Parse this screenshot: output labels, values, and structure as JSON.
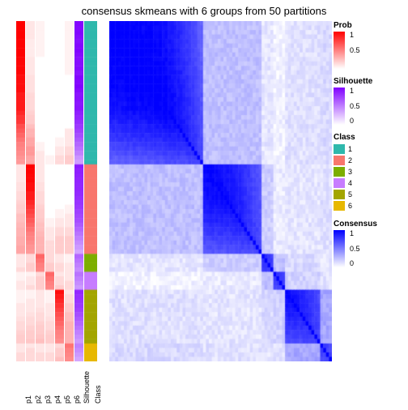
{
  "title": "consensus skmeans with 6 groups from 50 partitions",
  "background": "#ffffff",
  "annotation_columns": [
    {
      "name": "p1",
      "width": 11,
      "type": "prob"
    },
    {
      "name": "p2",
      "width": 11,
      "type": "prob"
    },
    {
      "name": "p3",
      "width": 11,
      "type": "prob"
    },
    {
      "name": "p4",
      "width": 11,
      "type": "prob"
    },
    {
      "name": "p5",
      "width": 11,
      "type": "prob"
    },
    {
      "name": "p6",
      "width": 11,
      "type": "prob"
    },
    {
      "name": "Silhouette",
      "width": 11,
      "type": "silhouette"
    },
    {
      "name": "Class",
      "width": 16,
      "type": "class"
    }
  ],
  "groups": [
    {
      "class": 1,
      "size": 32,
      "sil": [
        0.98,
        0.97,
        0.99,
        0.96,
        0.95,
        0.98,
        0.99,
        0.96,
        0.94,
        0.95,
        0.96,
        0.93,
        0.98,
        0.97,
        0.99,
        0.96,
        0.92,
        0.93,
        0.91,
        0.92,
        0.88,
        0.85,
        0.82,
        0.78,
        0.75,
        0.7,
        0.65,
        0.6,
        0.55,
        0.5,
        0.42,
        0.38
      ],
      "prob": [
        [
          1.0,
          0.1,
          0.05,
          0.0,
          0.0,
          0.05
        ],
        [
          1.0,
          0.1,
          0.05,
          0.0,
          0.0,
          0.05
        ],
        [
          1.0,
          0.1,
          0.05,
          0.0,
          0.0,
          0.05
        ],
        [
          1.0,
          0.1,
          0.05,
          0.0,
          0.0,
          0.05
        ],
        [
          1.0,
          0.08,
          0.05,
          0.0,
          0.0,
          0.05
        ],
        [
          1.0,
          0.08,
          0.05,
          0.0,
          0.0,
          0.05
        ],
        [
          1.0,
          0.08,
          0.05,
          0.0,
          0.0,
          0.05
        ],
        [
          1.0,
          0.08,
          0.05,
          0.0,
          0.0,
          0.05
        ],
        [
          0.98,
          0.1,
          0.0,
          0.0,
          0.0,
          0.05
        ],
        [
          0.98,
          0.1,
          0.0,
          0.0,
          0.0,
          0.05
        ],
        [
          0.98,
          0.1,
          0.0,
          0.0,
          0.0,
          0.05
        ],
        [
          0.98,
          0.1,
          0.0,
          0.0,
          0.0,
          0.05
        ],
        [
          0.95,
          0.12,
          0.0,
          0.0,
          0.0,
          0.0
        ],
        [
          0.95,
          0.12,
          0.0,
          0.0,
          0.0,
          0.0
        ],
        [
          0.95,
          0.12,
          0.0,
          0.0,
          0.0,
          0.0
        ],
        [
          0.95,
          0.12,
          0.0,
          0.0,
          0.0,
          0.0
        ],
        [
          0.9,
          0.15,
          0.0,
          0.0,
          0.0,
          0.0
        ],
        [
          0.9,
          0.15,
          0.0,
          0.0,
          0.0,
          0.0
        ],
        [
          0.9,
          0.15,
          0.0,
          0.0,
          0.0,
          0.0
        ],
        [
          0.9,
          0.15,
          0.0,
          0.0,
          0.0,
          0.0
        ],
        [
          0.85,
          0.18,
          0.0,
          0.0,
          0.0,
          0.0
        ],
        [
          0.8,
          0.2,
          0.0,
          0.0,
          0.0,
          0.0
        ],
        [
          0.78,
          0.2,
          0.0,
          0.0,
          0.0,
          0.0
        ],
        [
          0.7,
          0.25,
          0.0,
          0.0,
          0.0,
          0.0
        ],
        [
          0.65,
          0.3,
          0.0,
          0.0,
          0.0,
          0.1
        ],
        [
          0.6,
          0.3,
          0.0,
          0.0,
          0.0,
          0.1
        ],
        [
          0.55,
          0.35,
          0.0,
          0.0,
          0.05,
          0.1
        ],
        [
          0.5,
          0.35,
          0.05,
          0.0,
          0.05,
          0.1
        ],
        [
          0.48,
          0.4,
          0.05,
          0.0,
          0.1,
          0.15
        ],
        [
          0.45,
          0.4,
          0.1,
          0.0,
          0.1,
          0.15
        ],
        [
          0.42,
          0.35,
          0.1,
          0.05,
          0.15,
          0.2
        ],
        [
          0.4,
          0.35,
          0.1,
          0.05,
          0.15,
          0.2
        ]
      ]
    },
    {
      "class": 2,
      "size": 20,
      "sil": [
        0.9,
        0.88,
        0.87,
        0.86,
        0.85,
        0.85,
        0.84,
        0.82,
        0.8,
        0.78,
        0.75,
        0.72,
        0.7,
        0.65,
        0.6,
        0.55,
        0.5,
        0.45,
        0.4,
        0.35
      ],
      "prob": [
        [
          0.1,
          1.0,
          0.1,
          0.0,
          0.0,
          0.0
        ],
        [
          0.1,
          1.0,
          0.1,
          0.0,
          0.0,
          0.0
        ],
        [
          0.1,
          0.98,
          0.1,
          0.0,
          0.0,
          0.0
        ],
        [
          0.1,
          0.98,
          0.1,
          0.0,
          0.0,
          0.0
        ],
        [
          0.12,
          0.95,
          0.12,
          0.0,
          0.0,
          0.0
        ],
        [
          0.12,
          0.95,
          0.12,
          0.0,
          0.0,
          0.0
        ],
        [
          0.15,
          0.9,
          0.15,
          0.0,
          0.0,
          0.0
        ],
        [
          0.15,
          0.9,
          0.15,
          0.0,
          0.0,
          0.0
        ],
        [
          0.18,
          0.85,
          0.15,
          0.0,
          0.0,
          0.0
        ],
        [
          0.2,
          0.8,
          0.18,
          0.0,
          0.0,
          0.05
        ],
        [
          0.2,
          0.75,
          0.2,
          0.0,
          0.05,
          0.05
        ],
        [
          0.25,
          0.7,
          0.2,
          0.0,
          0.05,
          0.1
        ],
        [
          0.25,
          0.65,
          0.22,
          0.05,
          0.1,
          0.1
        ],
        [
          0.28,
          0.6,
          0.25,
          0.05,
          0.1,
          0.1
        ],
        [
          0.3,
          0.55,
          0.25,
          0.1,
          0.15,
          0.15
        ],
        [
          0.3,
          0.5,
          0.28,
          0.1,
          0.15,
          0.15
        ],
        [
          0.32,
          0.48,
          0.3,
          0.1,
          0.2,
          0.2
        ],
        [
          0.32,
          0.45,
          0.3,
          0.15,
          0.2,
          0.2
        ],
        [
          0.35,
          0.42,
          0.3,
          0.15,
          0.2,
          0.2
        ],
        [
          0.35,
          0.4,
          0.3,
          0.15,
          0.2,
          0.2
        ]
      ]
    },
    {
      "class": 3,
      "size": 4,
      "sil": [
        0.6,
        0.55,
        0.5,
        0.45
      ],
      "prob": [
        [
          0.1,
          0.15,
          0.6,
          0.15,
          0.1,
          0.05
        ],
        [
          0.1,
          0.15,
          0.55,
          0.15,
          0.1,
          0.05
        ],
        [
          0.1,
          0.2,
          0.5,
          0.2,
          0.15,
          0.1
        ],
        [
          0.15,
          0.2,
          0.48,
          0.2,
          0.15,
          0.1
        ]
      ]
    },
    {
      "class": 4,
      "size": 4,
      "sil": [
        0.55,
        0.5,
        0.45,
        0.4
      ],
      "prob": [
        [
          0.05,
          0.05,
          0.15,
          0.6,
          0.1,
          0.1
        ],
        [
          0.05,
          0.1,
          0.2,
          0.55,
          0.15,
          0.1
        ],
        [
          0.1,
          0.1,
          0.2,
          0.5,
          0.15,
          0.15
        ],
        [
          0.1,
          0.15,
          0.2,
          0.48,
          0.2,
          0.15
        ]
      ]
    },
    {
      "class": 5,
      "size": 12,
      "sil": [
        0.85,
        0.82,
        0.8,
        0.78,
        0.75,
        0.7,
        0.65,
        0.6,
        0.55,
        0.5,
        0.45,
        0.4
      ],
      "prob": [
        [
          0.05,
          0.05,
          0.1,
          0.05,
          0.95,
          0.1
        ],
        [
          0.05,
          0.05,
          0.1,
          0.05,
          0.9,
          0.15
        ],
        [
          0.05,
          0.1,
          0.1,
          0.05,
          0.85,
          0.15
        ],
        [
          0.1,
          0.1,
          0.1,
          0.1,
          0.8,
          0.2
        ],
        [
          0.1,
          0.1,
          0.12,
          0.1,
          0.75,
          0.2
        ],
        [
          0.1,
          0.12,
          0.15,
          0.1,
          0.7,
          0.25
        ],
        [
          0.12,
          0.15,
          0.15,
          0.12,
          0.65,
          0.25
        ],
        [
          0.15,
          0.15,
          0.18,
          0.15,
          0.6,
          0.3
        ],
        [
          0.15,
          0.18,
          0.2,
          0.15,
          0.55,
          0.3
        ],
        [
          0.18,
          0.2,
          0.2,
          0.18,
          0.5,
          0.3
        ],
        [
          0.2,
          0.2,
          0.22,
          0.2,
          0.48,
          0.3
        ],
        [
          0.2,
          0.22,
          0.25,
          0.2,
          0.45,
          0.3
        ]
      ]
    },
    {
      "class": 6,
      "size": 4,
      "sil": [
        0.5,
        0.45,
        0.4,
        0.35
      ],
      "prob": [
        [
          0.1,
          0.1,
          0.1,
          0.1,
          0.15,
          0.55
        ],
        [
          0.1,
          0.15,
          0.1,
          0.1,
          0.2,
          0.5
        ],
        [
          0.15,
          0.15,
          0.15,
          0.15,
          0.2,
          0.48
        ],
        [
          0.15,
          0.15,
          0.15,
          0.15,
          0.25,
          0.45
        ]
      ]
    }
  ],
  "class_colors": {
    "1": "#2fb8ac",
    "2": "#f8766d",
    "3": "#7cae00",
    "4": "#c77cff",
    "5": "#a3a500",
    "6": "#e7b800"
  },
  "prob_gradient": {
    "low": "#ffffff",
    "high": "#ff0000"
  },
  "silhouette_gradient": {
    "low": "#ffffff",
    "high": "#8000ff"
  },
  "consensus_gradient": {
    "low": "#ffffff",
    "high": "#0000ff"
  },
  "legends": [
    {
      "title": "Prob",
      "type": "gradient",
      "colors": [
        "#ffffff",
        "#ff0000"
      ],
      "ticks": [
        {
          "pos": 0,
          "label": "1"
        },
        {
          "pos": 0.5,
          "label": "0.5"
        },
        {
          "pos": 1,
          "label": ""
        }
      ]
    },
    {
      "title": "Silhouette",
      "type": "gradient",
      "colors": [
        "#ffffff",
        "#8000ff"
      ],
      "ticks": [
        {
          "pos": 0,
          "label": "1"
        },
        {
          "pos": 0.5,
          "label": "0.5"
        },
        {
          "pos": 1,
          "label": "0"
        }
      ]
    },
    {
      "title": "Class",
      "type": "discrete",
      "items": [
        {
          "label": "1",
          "color": "#2fb8ac"
        },
        {
          "label": "2",
          "color": "#f8766d"
        },
        {
          "label": "3",
          "color": "#7cae00"
        },
        {
          "label": "4",
          "color": "#c77cff"
        },
        {
          "label": "5",
          "color": "#a3a500"
        },
        {
          "label": "6",
          "color": "#e7b800"
        }
      ]
    },
    {
      "title": "Consensus",
      "type": "gradient",
      "colors": [
        "#ffffff",
        "#0000ff"
      ],
      "ticks": [
        {
          "pos": 0,
          "label": "1"
        },
        {
          "pos": 0.5,
          "label": "0.5"
        },
        {
          "pos": 1,
          "label": "0"
        }
      ]
    }
  ],
  "cross_consensus": {
    "1-2": 0.25,
    "1-3": 0.1,
    "1-4": 0.05,
    "1-5": 0.12,
    "1-6": 0.15,
    "2-3": 0.2,
    "2-4": 0.08,
    "2-5": 0.1,
    "2-6": 0.12,
    "3-4": 0.25,
    "3-5": 0.15,
    "3-6": 0.1,
    "4-5": 0.18,
    "4-6": 0.12,
    "5-6": 0.35
  }
}
